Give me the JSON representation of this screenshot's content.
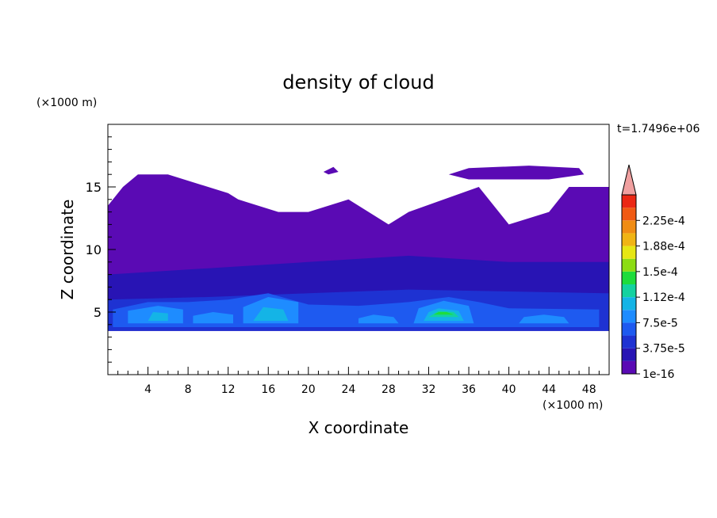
{
  "chart_data": {
    "type": "heatmap",
    "title": "density of cloud",
    "xlabel": "X coordinate",
    "ylabel": "Z coordinate",
    "x_unit": "(×1000 m)",
    "y_unit": "(×1000 m)",
    "time_label": "t=1.7496e+06",
    "xlim": [
      0,
      50
    ],
    "ylim": [
      0,
      20
    ],
    "x_ticks": [
      4,
      8,
      12,
      16,
      20,
      24,
      28,
      32,
      36,
      40,
      44,
      48
    ],
    "y_ticks": [
      5,
      10,
      15
    ],
    "colorbar": {
      "labels": [
        "1e-16",
        "3.75e-5",
        "7.5e-5",
        "1.12e-4",
        "1.5e-4",
        "1.88e-4",
        "2.25e-4"
      ],
      "colors": [
        "#5a0ab4",
        "#2814b4",
        "#1e32d2",
        "#1e5af0",
        "#1e8cff",
        "#14b4e6",
        "#14d2a0",
        "#1edc3c",
        "#8cdc14",
        "#e6e614",
        "#f0b414",
        "#f08c14",
        "#f05a14",
        "#eb2814",
        "#f0a0a0"
      ],
      "extend": "max"
    },
    "regions": [
      {
        "level": 0,
        "polygon": [
          [
            0,
            3.5
          ],
          [
            50,
            3.5
          ],
          [
            50,
            15
          ],
          [
            46,
            15
          ],
          [
            44,
            13
          ],
          [
            40,
            12
          ],
          [
            37,
            15
          ],
          [
            30,
            13
          ],
          [
            28,
            12
          ],
          [
            24,
            14
          ],
          [
            20,
            13
          ],
          [
            17,
            13
          ],
          [
            13,
            14
          ],
          [
            12,
            14.5
          ],
          [
            10,
            15
          ],
          [
            6,
            16
          ],
          [
            3,
            16
          ],
          [
            1.5,
            15
          ],
          [
            0,
            13.5
          ]
        ]
      },
      {
        "level": 0,
        "polygon": [
          [
            34,
            16
          ],
          [
            36,
            16.5
          ],
          [
            42,
            16.7
          ],
          [
            47,
            16.5
          ],
          [
            47.5,
            16
          ],
          [
            44,
            15.6
          ],
          [
            36,
            15.6
          ]
        ]
      },
      {
        "level": 0,
        "polygon": [
          [
            21.5,
            16.2
          ],
          [
            22.5,
            16.6
          ],
          [
            23,
            16.2
          ],
          [
            22,
            16
          ]
        ]
      },
      {
        "level": 1,
        "polygon": [
          [
            0,
            3.5
          ],
          [
            50,
            3.5
          ],
          [
            50,
            9
          ],
          [
            40,
            9
          ],
          [
            30,
            9.5
          ],
          [
            20,
            9
          ],
          [
            10,
            8.5
          ],
          [
            0,
            8
          ]
        ]
      },
      {
        "level": 2,
        "polygon": [
          [
            0,
            3.5
          ],
          [
            50,
            3.5
          ],
          [
            50,
            6.5
          ],
          [
            30,
            6.8
          ],
          [
            20,
            6.5
          ],
          [
            10,
            6.2
          ],
          [
            0,
            6
          ]
        ]
      },
      {
        "level": 3,
        "polygon": [
          [
            0.5,
            3.8
          ],
          [
            49,
            3.8
          ],
          [
            49,
            5.2
          ],
          [
            40,
            5.3
          ],
          [
            37,
            5.8
          ],
          [
            34,
            6.2
          ],
          [
            30,
            5.8
          ],
          [
            25,
            5.5
          ],
          [
            20,
            5.6
          ],
          [
            16,
            6.5
          ],
          [
            12,
            6
          ],
          [
            8,
            5.8
          ],
          [
            4,
            5.8
          ],
          [
            0.5,
            5.2
          ]
        ]
      },
      {
        "level": 4,
        "polygon": [
          [
            2,
            4.1
          ],
          [
            7.5,
            4.1
          ],
          [
            7.5,
            5.2
          ],
          [
            5,
            5.5
          ],
          [
            2,
            5.1
          ]
        ]
      },
      {
        "level": 4,
        "polygon": [
          [
            8.5,
            4.1
          ],
          [
            12.5,
            4.1
          ],
          [
            12.5,
            4.8
          ],
          [
            10.5,
            5
          ],
          [
            8.5,
            4.7
          ]
        ]
      },
      {
        "level": 4,
        "polygon": [
          [
            13.5,
            4.1
          ],
          [
            19,
            4.1
          ],
          [
            19,
            5.8
          ],
          [
            16,
            6.2
          ],
          [
            13.5,
            5.4
          ]
        ]
      },
      {
        "level": 4,
        "polygon": [
          [
            25,
            4.1
          ],
          [
            29,
            4.1
          ],
          [
            28.5,
            4.6
          ],
          [
            26.5,
            4.8
          ],
          [
            25,
            4.5
          ]
        ]
      },
      {
        "level": 4,
        "polygon": [
          [
            30.5,
            4.1
          ],
          [
            36.5,
            4.1
          ],
          [
            36,
            5.5
          ],
          [
            33.5,
            5.9
          ],
          [
            31,
            5.3
          ]
        ]
      },
      {
        "level": 4,
        "polygon": [
          [
            41,
            4.1
          ],
          [
            46,
            4.1
          ],
          [
            45.5,
            4.6
          ],
          [
            43.5,
            4.8
          ],
          [
            41.5,
            4.6
          ]
        ]
      },
      {
        "level": 5,
        "polygon": [
          [
            4,
            4.3
          ],
          [
            6,
            4.3
          ],
          [
            6,
            4.9
          ],
          [
            4.5,
            5
          ]
        ]
      },
      {
        "level": 5,
        "polygon": [
          [
            14.5,
            4.3
          ],
          [
            18,
            4.3
          ],
          [
            17.5,
            5.2
          ],
          [
            15.5,
            5.4
          ]
        ]
      },
      {
        "level": 5,
        "polygon": [
          [
            31.5,
            4.3
          ],
          [
            35.5,
            4.3
          ],
          [
            35,
            5.1
          ],
          [
            33,
            5.3
          ],
          [
            32,
            5
          ]
        ]
      },
      {
        "level": 6,
        "polygon": [
          [
            32,
            4.6
          ],
          [
            35,
            4.6
          ],
          [
            34.5,
            5
          ],
          [
            33,
            5.1
          ]
        ]
      },
      {
        "level": 7,
        "polygon": [
          [
            32.5,
            4.8
          ],
          [
            34.5,
            4.8
          ],
          [
            33.8,
            5
          ],
          [
            33,
            5
          ]
        ]
      }
    ]
  }
}
